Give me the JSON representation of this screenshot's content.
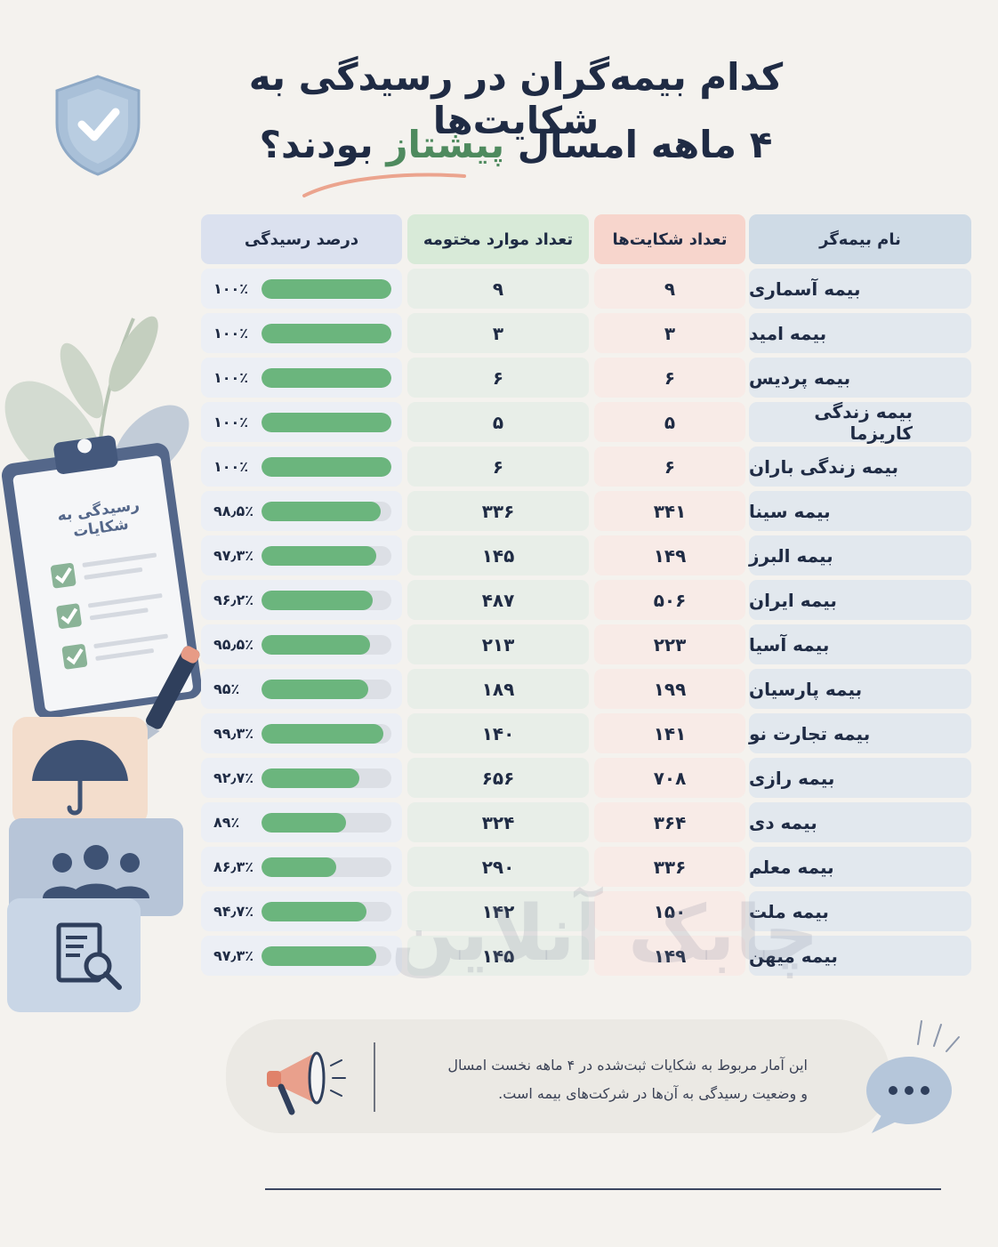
{
  "title": {
    "line1": "کدام بیمه‌گران در رسیدگی به شکایت‌ها",
    "line2_part1": "۴ ماهه امسال ",
    "line2_highlight": "پیشتاز",
    "line2_part2": " بودند؟"
  },
  "clipboard": {
    "label": "رسیدگی به شکایات"
  },
  "table": {
    "headers": {
      "name": "نام بیمه‌گر",
      "complaints": "تعداد شکایت‌ها",
      "closed": "تعداد موارد مختومه",
      "percent": "درصد رسیدگی"
    },
    "rows": [
      {
        "name": "بیمه آسماری",
        "complaints": "۹",
        "closed": "۹",
        "percent": "۱۰۰٪",
        "pct": 100
      },
      {
        "name": "بیمه امید",
        "complaints": "۳",
        "closed": "۳",
        "percent": "۱۰۰٪",
        "pct": 100
      },
      {
        "name": "بیمه پردیس",
        "complaints": "۶",
        "closed": "۶",
        "percent": "۱۰۰٪",
        "pct": 100
      },
      {
        "name": "بیمه زندگی کاریزما",
        "complaints": "۵",
        "closed": "۵",
        "percent": "۱۰۰٪",
        "pct": 100
      },
      {
        "name": "بیمه زندگی باران",
        "complaints": "۶",
        "closed": "۶",
        "percent": "۱۰۰٪",
        "pct": 100
      },
      {
        "name": "بیمه سینا",
        "complaints": "۳۴۱",
        "closed": "۳۳۶",
        "percent": "۹۸٫۵٪",
        "pct": 98.5
      },
      {
        "name": "بیمه البرز",
        "complaints": "۱۴۹",
        "closed": "۱۴۵",
        "percent": "۹۷٫۳٪",
        "pct": 97.3
      },
      {
        "name": "بیمه ایران",
        "complaints": "۵۰۶",
        "closed": "۴۸۷",
        "percent": "۹۶٫۲٪",
        "pct": 96.2
      },
      {
        "name": "بیمه آسیا",
        "complaints": "۲۲۳",
        "closed": "۲۱۳",
        "percent": "۹۵٫۵٪",
        "pct": 95.5
      },
      {
        "name": "بیمه پارسیان",
        "complaints": "۱۹۹",
        "closed": "۱۸۹",
        "percent": "۹۵٪",
        "pct": 95
      },
      {
        "name": "بیمه تجارت نو",
        "complaints": "۱۴۱",
        "closed": "۱۴۰",
        "percent": "۹۹٫۳٪",
        "pct": 99.3
      },
      {
        "name": "بیمه رازی",
        "complaints": "۷۰۸",
        "closed": "۶۵۶",
        "percent": "۹۲٫۷٪",
        "pct": 92.7
      },
      {
        "name": "بیمه دی",
        "complaints": "۳۶۴",
        "closed": "۳۲۴",
        "percent": "۸۹٪",
        "pct": 89
      },
      {
        "name": "بیمه معلم",
        "complaints": "۳۳۶",
        "closed": "۲۹۰",
        "percent": "۸۶٫۳٪",
        "pct": 86.3
      },
      {
        "name": "بیمه ملت",
        "complaints": "۱۵۰",
        "closed": "۱۴۲",
        "percent": "۹۴٫۷٪",
        "pct": 94.7
      },
      {
        "name": "بیمه میهن",
        "complaints": "۱۴۹",
        "closed": "۱۴۵",
        "percent": "۹۷٫۳٪",
        "pct": 97.3
      }
    ]
  },
  "watermark": "چابک آنلاین",
  "note": {
    "line1": "این آمار مربوط به شکایات ثبت‌شده در ۴ ماهه نخست امسال",
    "line2": "و وضعیت رسیدگی به آن‌ها در شرکت‌های بیمه است."
  },
  "colors": {
    "title": "#1f2b44",
    "highlight": "#4e8a5e",
    "bar_fill": "#6bb57d",
    "bar_track": "#dcdfe5"
  },
  "icons": [
    "shield-check-icon",
    "clipboard-icon",
    "pen-icon",
    "umbrella-icon",
    "people-icon",
    "document-search-icon",
    "megaphone-icon",
    "chat-bubble-icon",
    "leaf-icon"
  ]
}
